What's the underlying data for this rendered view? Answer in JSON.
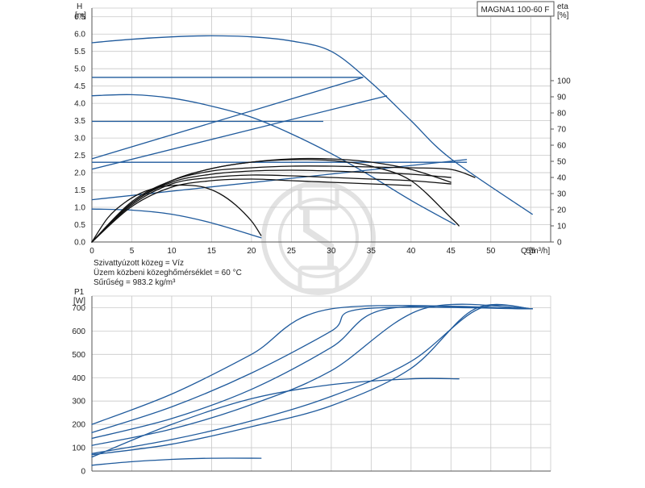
{
  "pump_label": "MAGNA1 100-60 F",
  "fluid_info": {
    "line1": "Szivattyúzott közeg = Víz",
    "line2": "Üzem közbeni közeghőmérséklet = 60 °C",
    "line3": "Sűrűség = 983.2 kg/m³"
  },
  "colors": {
    "curve": "#1f5a9c",
    "eta": "#111111",
    "grid": "#c8c8c8",
    "watermark": "#e2e2e2"
  },
  "watermark_icon": "pipe-fitting-logo-icon",
  "chart_data": [
    {
      "id": "head",
      "type": "line",
      "ylabel_top": "H",
      "yunit": "[m]",
      "y2label_top": "eta",
      "y2unit": "[%]",
      "xlabel": "Q [m³/h]",
      "xlim": [
        0,
        57.5
      ],
      "ylim": [
        0,
        6.5
      ],
      "y2lim": [
        0,
        100
      ],
      "grid": true,
      "xticks": [
        0,
        5,
        10,
        15,
        20,
        25,
        30,
        35,
        40,
        45,
        50,
        55
      ],
      "yticks": [
        0.0,
        0.5,
        1.0,
        1.5,
        2.0,
        2.5,
        3.0,
        3.5,
        4.0,
        4.5,
        5.0,
        5.5,
        6.0,
        6.5
      ],
      "y2ticks": [
        0,
        10,
        20,
        30,
        40,
        50,
        60,
        70,
        80,
        90,
        100
      ],
      "head_curves": [
        {
          "x": [
            0,
            5,
            10,
            15,
            20,
            25,
            30,
            35,
            40,
            45,
            55.2
          ],
          "y": [
            5.75,
            5.85,
            5.92,
            5.95,
            5.92,
            5.8,
            5.5,
            4.6,
            3.5,
            2.4,
            0.8
          ]
        },
        {
          "x": [
            0,
            5,
            10,
            15,
            20,
            25,
            30,
            35,
            40,
            45.5
          ],
          "y": [
            4.22,
            4.25,
            4.15,
            3.92,
            3.6,
            3.12,
            2.55,
            1.9,
            1.2,
            0.5
          ]
        },
        {
          "x": [
            0,
            5,
            10,
            15,
            21.2
          ],
          "y": [
            0.95,
            0.92,
            0.8,
            0.55,
            0.12
          ]
        }
      ],
      "const_lines": [
        {
          "x": [
            0,
            34
          ],
          "y": [
            4.75,
            4.75
          ]
        },
        {
          "x": [
            0,
            29
          ],
          "y": [
            3.48,
            3.48
          ]
        },
        {
          "x": [
            0,
            47
          ],
          "y": [
            2.3,
            2.3
          ]
        }
      ],
      "prop_lines": [
        {
          "x": [
            0,
            34
          ],
          "y": [
            2.4,
            4.75
          ]
        },
        {
          "x": [
            0,
            37
          ],
          "y": [
            2.1,
            4.22
          ]
        },
        {
          "x": [
            0,
            47
          ],
          "y": [
            1.22,
            2.38
          ]
        }
      ],
      "eta_curves": [
        {
          "x": [
            0,
            2,
            4,
            6,
            8,
            10,
            12,
            14,
            16,
            18,
            20,
            21.2
          ],
          "y": [
            0,
            15,
            24,
            30,
            33.5,
            35,
            35.2,
            34,
            30,
            23,
            13,
            4
          ]
        },
        {
          "x": [
            0,
            5,
            10,
            15,
            20,
            25,
            30,
            35,
            40,
            45
          ],
          "y": [
            0,
            24,
            38,
            45.5,
            49.5,
            51.5,
            51.5,
            49.5,
            45,
            37
          ]
        },
        {
          "x": [
            0,
            5,
            10,
            15,
            20,
            25,
            30,
            35,
            40,
            45,
            46
          ],
          "y": [
            0,
            24,
            38,
            45.5,
            49.5,
            51,
            50.5,
            47,
            38,
            15,
            10
          ]
        },
        {
          "x": [
            0,
            5,
            10,
            15,
            20,
            25,
            30,
            35,
            40,
            45,
            48
          ],
          "y": [
            0,
            25,
            38,
            44,
            46,
            47,
            47,
            46.5,
            46,
            45,
            40
          ]
        },
        {
          "x": [
            0,
            5,
            10,
            15,
            20,
            25,
            30,
            35,
            40,
            45
          ],
          "y": [
            0,
            24,
            37,
            42,
            44,
            44.5,
            44,
            43,
            42,
            40
          ]
        },
        {
          "x": [
            0,
            5,
            10,
            15,
            20,
            25,
            30,
            35,
            40,
            45
          ],
          "y": [
            0,
            23,
            36,
            40,
            41.5,
            41,
            40,
            39,
            38,
            36
          ]
        },
        {
          "x": [
            0,
            5,
            10,
            15,
            20,
            25,
            30,
            35,
            40
          ],
          "y": [
            0,
            22,
            34,
            38,
            39,
            38,
            37,
            36,
            35
          ]
        }
      ]
    },
    {
      "id": "power",
      "type": "line",
      "ylabel_top": "P1",
      "yunit": "[W]",
      "xlim": [
        0,
        57.5
      ],
      "ylim": [
        0,
        750
      ],
      "grid": true,
      "yticks": [
        0,
        100,
        200,
        300,
        400,
        500,
        600,
        700
      ],
      "series": [
        {
          "x": [
            0,
            10,
            20,
            30,
            55.2
          ],
          "y": [
            200,
            330,
            500,
            695,
            695
          ]
        },
        {
          "x": [
            0,
            10,
            20,
            30,
            34,
            55.2
          ],
          "y": [
            165,
            275,
            420,
            600,
            695,
            695
          ]
        },
        {
          "x": [
            0,
            10,
            20,
            30,
            37,
            55.2
          ],
          "y": [
            140,
            225,
            350,
            530,
            695,
            695
          ]
        },
        {
          "x": [
            0,
            10,
            20,
            30,
            41.5,
            55.2
          ],
          "y": [
            110,
            180,
            285,
            430,
            695,
            695
          ]
        },
        {
          "x": [
            0,
            10,
            20,
            30,
            40,
            48.5,
            55.2
          ],
          "y": [
            75,
            135,
            215,
            320,
            470,
            695,
            695
          ]
        },
        {
          "x": [
            0,
            10,
            20,
            30,
            40,
            48,
            55.2
          ],
          "y": [
            70,
            115,
            190,
            280,
            440,
            695,
            695
          ]
        },
        {
          "x": [
            0,
            10,
            20,
            30,
            40,
            46
          ],
          "y": [
            60,
            200,
            310,
            370,
            395,
            395
          ]
        },
        {
          "x": [
            0,
            5,
            10,
            15,
            21.2
          ],
          "y": [
            25,
            40,
            50,
            55,
            55
          ]
        }
      ]
    }
  ]
}
